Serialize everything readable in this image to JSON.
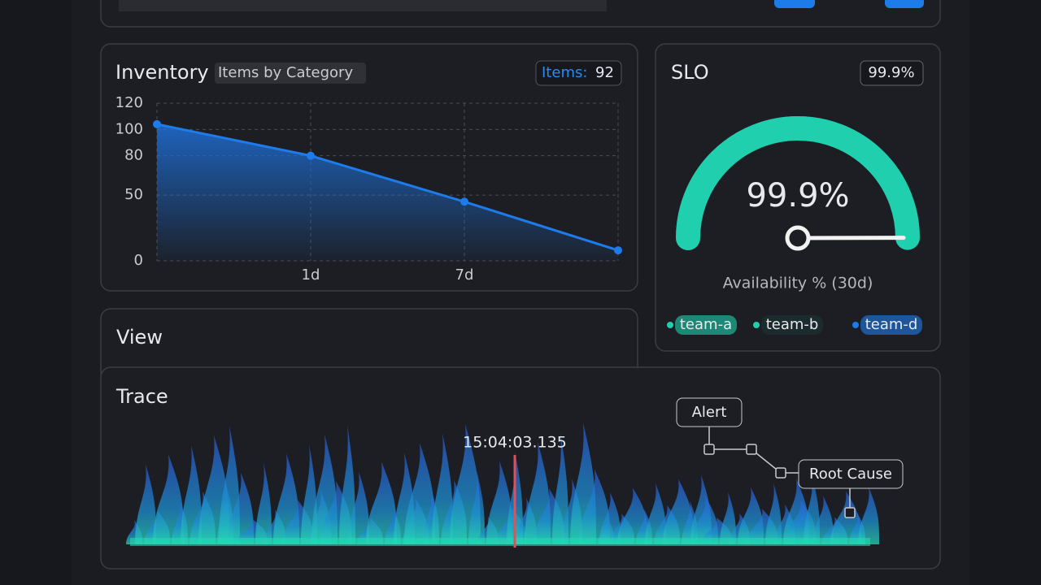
{
  "chart_data": [
    {
      "type": "line",
      "title": "Inventory",
      "subtitle": "Items by Category",
      "badge_label": "Items:",
      "badge_value": 92,
      "categories": [
        null,
        "1d",
        "7d",
        null
      ],
      "values": [
        104,
        80,
        45,
        8
      ],
      "color": "#1e7bea",
      "ylim": [
        0,
        120
      ],
      "yticks": [
        120,
        100,
        80,
        50,
        0
      ],
      "grid": true
    },
    {
      "type": "gauge",
      "title": "SLO",
      "badge": "99.9%",
      "value": 99.9,
      "value_label": "99.9%",
      "ylim": [
        0,
        100
      ],
      "caption": "Availability % (30d)",
      "color": "#1fcfae",
      "track_color": "#55575c",
      "series": [
        {
          "name": "team-a",
          "color": "#1fcfae"
        },
        {
          "name": "team-b",
          "color": "#1fcfae"
        },
        {
          "name": "team-d",
          "color": "#1e7bea"
        }
      ]
    }
  ],
  "view": {
    "title": "View"
  },
  "trace": {
    "title": "Trace",
    "marker_time": "15:04:03.135",
    "nodes": [
      {
        "label": "Alert"
      },
      {
        "label": "Root Cause"
      }
    ]
  }
}
